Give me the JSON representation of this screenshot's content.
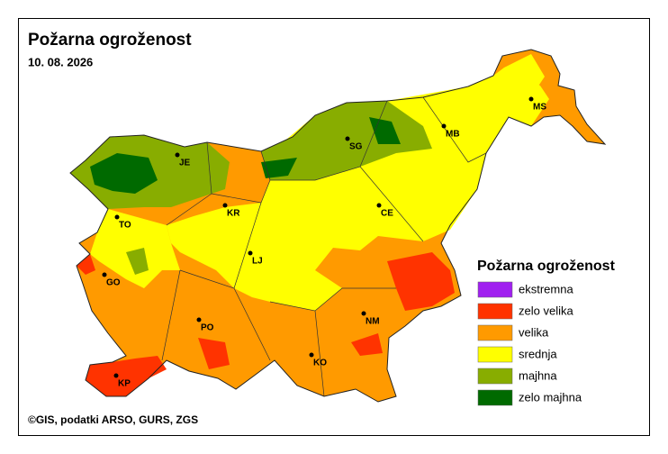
{
  "header": {
    "title": "Požarna ogroženost",
    "date": "10. 08. 2026"
  },
  "cities": [
    {
      "label": "MS"
    },
    {
      "label": "MB"
    },
    {
      "label": "SG"
    },
    {
      "label": "JE"
    },
    {
      "label": "KR"
    },
    {
      "label": "TO"
    },
    {
      "label": "CE"
    },
    {
      "label": "LJ"
    },
    {
      "label": "GO"
    },
    {
      "label": "NM"
    },
    {
      "label": "PO"
    },
    {
      "label": "KO"
    },
    {
      "label": "KP"
    }
  ],
  "legend": {
    "title": "Požarna ogroženost",
    "items": [
      {
        "label": "ekstremna",
        "color": "#a020f0"
      },
      {
        "label": "zelo velika",
        "color": "#ff3300"
      },
      {
        "label": "velika",
        "color": "#ff9a00"
      },
      {
        "label": "srednja",
        "color": "#ffff00"
      },
      {
        "label": "majhna",
        "color": "#88ad00"
      },
      {
        "label": "zelo majhna",
        "color": "#006a00"
      }
    ]
  },
  "credit": "©GIS, podatki ARSO, GURS, ZGS"
}
